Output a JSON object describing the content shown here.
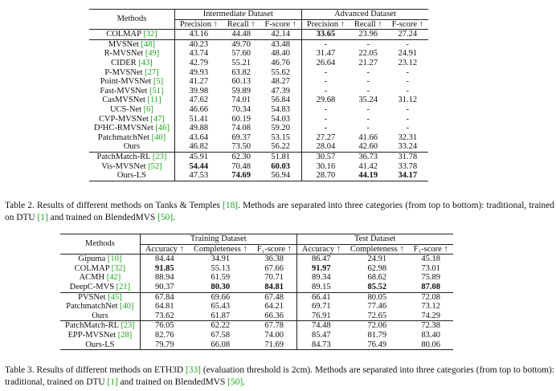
{
  "table2": {
    "header": {
      "methods": "Methods",
      "group1": "Intermediate Dataset",
      "group2": "Advanced Dataset",
      "cols": [
        "Precision ↑",
        "Recall ↑",
        "F-score ↑",
        "Precision ↑",
        "Recall ↑",
        "F-score ↑"
      ]
    },
    "sections": [
      [
        {
          "name": "COLMAP ",
          "ref": "[32]",
          "vals": [
            "43.16",
            "44.48",
            "42.14",
            "33.65",
            "23.96",
            "27.24"
          ],
          "bold": [
            3
          ]
        }
      ],
      [
        {
          "name": "MVSNet ",
          "ref": "[48]",
          "vals": [
            "40.23",
            "49.70",
            "43.48",
            "-",
            "-",
            "-"
          ],
          "bold": []
        },
        {
          "name": "R-MVSNet ",
          "ref": "[49]",
          "vals": [
            "43.74",
            "57.60",
            "48.40",
            "31.47",
            "22.05",
            "24.91"
          ],
          "bold": []
        },
        {
          "name": "CIDER ",
          "ref": "[43]",
          "vals": [
            "42.79",
            "55.21",
            "46.76",
            "26.64",
            "21.27",
            "23.12"
          ],
          "bold": []
        },
        {
          "name": "P-MVSNet ",
          "ref": "[27]",
          "vals": [
            "49.93",
            "63.82",
            "55.62",
            "-",
            "-",
            "-"
          ],
          "bold": []
        },
        {
          "name": "Point-MVSNet ",
          "ref": "[5]",
          "vals": [
            "41.27",
            "60.13",
            "48.27",
            "-",
            "-",
            "-"
          ],
          "bold": []
        },
        {
          "name": "Fast-MVSNet ",
          "ref": "[51]",
          "vals": [
            "39.98",
            "59.89",
            "47.39",
            "-",
            "-",
            "-"
          ],
          "bold": []
        },
        {
          "name": "CasMVSNet ",
          "ref": "[11]",
          "vals": [
            "47.62",
            "74.01",
            "56.84",
            "29.68",
            "35.24",
            "31.12"
          ],
          "bold": []
        },
        {
          "name": "UCS-Net ",
          "ref": "[6]",
          "vals": [
            "46.66",
            "70.34",
            "54.83",
            "-",
            "-",
            "-"
          ],
          "bold": []
        },
        {
          "name": "CVP-MVSNet ",
          "ref": "[47]",
          "vals": [
            "51.41",
            "60.19",
            "54.03",
            "-",
            "-",
            "-"
          ],
          "bold": []
        },
        {
          "name": "D²HC-RMVSNet ",
          "ref": "[46]",
          "vals": [
            "49.88",
            "74.08",
            "59.20",
            "-",
            "-",
            "-"
          ],
          "bold": []
        },
        {
          "name": "PatchmatchNet ",
          "ref": "[40]",
          "vals": [
            "43.64",
            "69.37",
            "53.15",
            "27.27",
            "41.66",
            "32.31"
          ],
          "bold": []
        },
        {
          "name": "Ours",
          "ref": "",
          "vals": [
            "46.82",
            "73.50",
            "56.22",
            "28.04",
            "42.60",
            "33.24"
          ],
          "bold": []
        }
      ],
      [
        {
          "name": "PatchMatch-RL ",
          "ref": "[23]",
          "vals": [
            "45.91",
            "62.30",
            "51.81",
            "30.57",
            "36.73",
            "31.78"
          ],
          "bold": []
        },
        {
          "name": "Vis-MVSNet ",
          "ref": "[52]",
          "vals": [
            "54.44",
            "70.48",
            "60.03",
            "30.16",
            "41.42",
            "33.78"
          ],
          "bold": [
            0,
            2
          ]
        },
        {
          "name": "Ours-LS",
          "ref": "",
          "vals": [
            "47.53",
            "74.69",
            "56.94",
            "28.70",
            "44.19",
            "34.17"
          ],
          "bold": [
            1,
            4,
            5
          ]
        }
      ]
    ]
  },
  "caption2": [
    {
      "t": "Table 2.  Results of different methods on Tanks & Temples "
    },
    {
      "t": "[18]",
      "ref": true
    },
    {
      "t": ".  Methods are separated into three categories (from top to bottom): traditional, trained on DTU "
    },
    {
      "t": "[1]",
      "ref": true
    },
    {
      "t": " and trained on BlendedMVS "
    },
    {
      "t": "[50]",
      "ref": true
    },
    {
      "t": "."
    }
  ],
  "table3": {
    "header": {
      "methods": "Methods",
      "group1": "Training Dataset",
      "group2": "Test Dataset",
      "cols": [
        "Accuracy ↑",
        "Completeness ↑",
        "F₁-score ↑",
        "Accuracy ↑",
        "Completeness ↑",
        "F₁-score ↑"
      ]
    },
    "sections": [
      [
        {
          "name": "Gipuma ",
          "ref": "[10]",
          "vals": [
            "84.44",
            "34.91",
            "36.38",
            "86.47",
            "24.91",
            "45.18"
          ],
          "bold": []
        },
        {
          "name": "COLMAP ",
          "ref": "[32]",
          "vals": [
            "91.85",
            "55.13",
            "67.66",
            "91.97",
            "62.98",
            "73.01"
          ],
          "bold": [
            0,
            3
          ]
        },
        {
          "name": "ACMH ",
          "ref": "[42]",
          "vals": [
            "88.94",
            "61.59",
            "70.71",
            "89.34",
            "68.62",
            "75.89"
          ],
          "bold": []
        },
        {
          "name": "DeepC-MVS ",
          "ref": "[21]",
          "vals": [
            "90.37",
            "80.30",
            "84.81",
            "89.15",
            "85.52",
            "87.08"
          ],
          "bold": [
            1,
            2,
            4,
            5
          ]
        }
      ],
      [
        {
          "name": "PVSNet ",
          "ref": "[45]",
          "vals": [
            "67.84",
            "69.66",
            "67.48",
            "66.41",
            "80.05",
            "72.08"
          ],
          "bold": []
        },
        {
          "name": "PatchmatchNet ",
          "ref": "[40]",
          "vals": [
            "64.81",
            "65.43",
            "64.21",
            "69.71",
            "77.46",
            "73.12"
          ],
          "bold": []
        },
        {
          "name": "Ours",
          "ref": "",
          "vals": [
            "73.62",
            "61.87",
            "66.36",
            "76.91",
            "72.65",
            "74.29"
          ],
          "bold": []
        }
      ],
      [
        {
          "name": "PatchMatch-RL ",
          "ref": "[23]",
          "vals": [
            "76.05",
            "62.22",
            "67.78",
            "74.48",
            "72.06",
            "72.38"
          ],
          "bold": []
        },
        {
          "name": "EPP-MVSNet ",
          "ref": "[28]",
          "vals": [
            "82.76",
            "67.58",
            "74.00",
            "85.47",
            "81.79",
            "83.40"
          ],
          "bold": []
        },
        {
          "name": "Ours-LS",
          "ref": "",
          "vals": [
            "79.79",
            "66.08",
            "71.69",
            "84.73",
            "76.49",
            "80.06"
          ],
          "bold": []
        }
      ]
    ]
  },
  "caption3": [
    {
      "t": "Table 3. Results of different methods on ETH3D "
    },
    {
      "t": "[33]",
      "ref": true
    },
    {
      "t": " (evaluation threshold is 2cm). Methods are separated into three categories (from top to bottom): traditional, trained on DTU "
    },
    {
      "t": "[1]",
      "ref": true
    },
    {
      "t": " and trained on BlendedMVS "
    },
    {
      "t": "[50]",
      "ref": true
    },
    {
      "t": "."
    }
  ]
}
